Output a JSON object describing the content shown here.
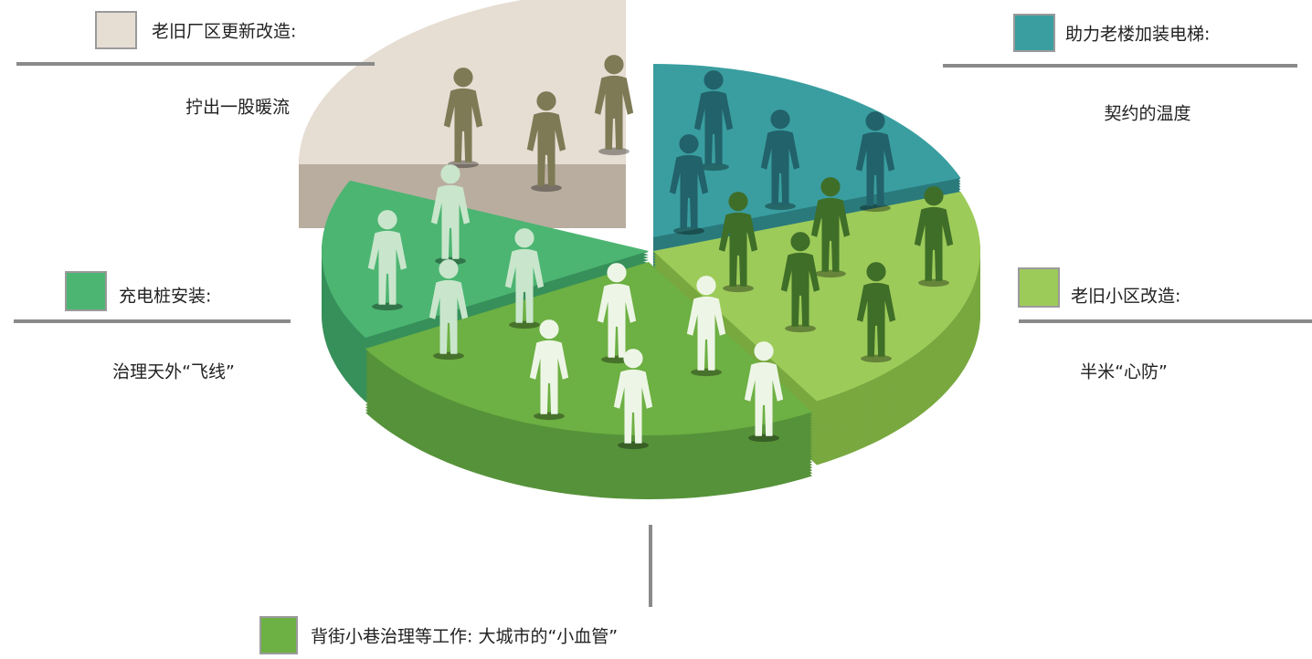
{
  "items": [
    {
      "title": "老旧厂区更新改造:",
      "subtitle": "拧出一股暖流"
    },
    {
      "title": "助力老楼加装电梯:",
      "subtitle": "契约的温度"
    },
    {
      "title": "充电桩安装:",
      "subtitle": "治理天外“飞线”"
    },
    {
      "title": "老旧小区改造:",
      "subtitle": "半米“心防”"
    },
    {
      "title": "背街小巷治理等工作: 大城市的“小血管”"
    }
  ]
}
